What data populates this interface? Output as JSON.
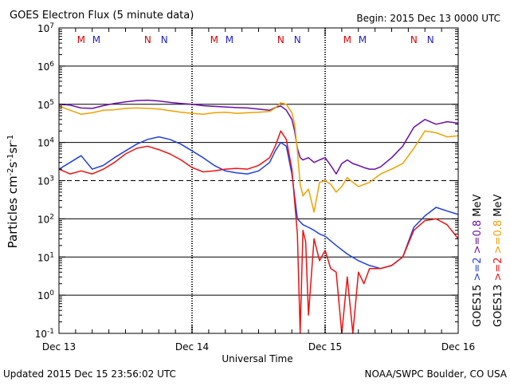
{
  "header": {
    "title": "GOES Electron Flux (5 minute data)",
    "begin": "Begin: 2015 Dec 13 0000 UTC"
  },
  "footer": {
    "updated": "Updated 2015 Dec 15 23:56:02 UTC",
    "credit": "NOAA/SWPC Boulder, CO USA"
  },
  "colors": {
    "goes15_2mev": "#1f3fe0",
    "goes13_2mev": "#ee1111",
    "goes15_08mev": "#6a0dab",
    "goes13_08mev": "#f0a000",
    "markerM": "#dd0000",
    "markerN": "#2222cc"
  },
  "chart_data": {
    "type": "line",
    "y_scale": "log",
    "ylim": [
      0.1,
      10000000
    ],
    "xlim": [
      "2015-12-13T00:00",
      "2015-12-16T00:00"
    ],
    "ylabel": "Particles cm",
    "ylabel_sup1": "-2",
    "ylabel_mid1": "s",
    "ylabel_sup2": "-1",
    "ylabel_mid2": "sr",
    "ylabel_sup3": "-1",
    "xlabel": "Universal Time",
    "x_ticks": [
      "Dec 13",
      "Dec 14",
      "Dec 15",
      "Dec 16"
    ],
    "y_ticks": [
      {
        "base": "10",
        "exp": "-1",
        "value": 0.1
      },
      {
        "base": "10",
        "exp": "0",
        "value": 1
      },
      {
        "base": "10",
        "exp": "1",
        "value": 10
      },
      {
        "base": "10",
        "exp": "2",
        "value": 100
      },
      {
        "base": "10",
        "exp": "3",
        "value": 1000
      },
      {
        "base": "10",
        "exp": "4",
        "value": 10000
      },
      {
        "base": "10",
        "exp": "5",
        "value": 100000
      },
      {
        "base": "10",
        "exp": "6",
        "value": 1000000
      },
      {
        "base": "10",
        "exp": "7",
        "value": 10000000
      }
    ],
    "threshold": 1000,
    "markers": [
      {
        "label": "M",
        "x": "2015-12-13T04:00",
        "color": "#dd0000"
      },
      {
        "label": "M",
        "x": "2015-12-13T06:45",
        "color": "#2222cc"
      },
      {
        "label": "N",
        "x": "2015-12-13T16:00",
        "color": "#dd0000"
      },
      {
        "label": "N",
        "x": "2015-12-13T19:00",
        "color": "#2222cc"
      },
      {
        "label": "M",
        "x": "2015-12-14T04:00",
        "color": "#dd0000"
      },
      {
        "label": "M",
        "x": "2015-12-14T06:45",
        "color": "#2222cc"
      },
      {
        "label": "N",
        "x": "2015-12-14T16:00",
        "color": "#dd0000"
      },
      {
        "label": "N",
        "x": "2015-12-14T19:00",
        "color": "#2222cc"
      },
      {
        "label": "M",
        "x": "2015-12-15T04:00",
        "color": "#dd0000"
      },
      {
        "label": "M",
        "x": "2015-12-15T06:45",
        "color": "#2222cc"
      },
      {
        "label": "N",
        "x": "2015-12-15T16:00",
        "color": "#dd0000"
      },
      {
        "label": "N",
        "x": "2015-12-15T19:00",
        "color": "#2222cc"
      }
    ],
    "legend": [
      {
        "text": "GOES15",
        "color": "#000000"
      },
      {
        "text": ">=2",
        "color": "#1f3fe0"
      },
      {
        "text": ">=0.8",
        "color": "#6a0dab"
      },
      {
        "text": "MeV",
        "color": "#000000"
      },
      {
        "text": "GOES13",
        "color": "#000000"
      },
      {
        "text": ">=2",
        "color": "#ee1111"
      },
      {
        "text": ">=0.8",
        "color": "#f0a000"
      },
      {
        "text": "MeV",
        "color": "#000000"
      }
    ],
    "series": [
      {
        "color": "#6a0dab",
        "x": [
          "2015-12-13T00:00",
          "2015-12-13T02:00",
          "2015-12-13T04:00",
          "2015-12-13T06:00",
          "2015-12-13T08:00",
          "2015-12-13T10:00",
          "2015-12-13T12:00",
          "2015-12-13T14:00",
          "2015-12-13T16:00",
          "2015-12-13T18:00",
          "2015-12-13T20:00",
          "2015-12-13T22:00",
          "2015-12-14T00:00",
          "2015-12-14T02:00",
          "2015-12-14T04:00",
          "2015-12-14T06:00",
          "2015-12-14T08:00",
          "2015-12-14T10:00",
          "2015-12-14T12:00",
          "2015-12-14T14:00",
          "2015-12-14T15:00",
          "2015-12-14T16:00",
          "2015-12-14T17:00",
          "2015-12-14T18:00",
          "2015-12-14T18:30",
          "2015-12-14T19:00",
          "2015-12-14T19:30",
          "2015-12-14T20:00",
          "2015-12-14T21:00",
          "2015-12-14T22:00",
          "2015-12-14T23:00",
          "2015-12-15T00:00",
          "2015-12-15T01:00",
          "2015-12-15T02:00",
          "2015-12-15T03:00",
          "2015-12-15T04:00",
          "2015-12-15T05:00",
          "2015-12-15T06:00",
          "2015-12-15T07:00",
          "2015-12-15T08:00",
          "2015-12-15T09:00",
          "2015-12-15T10:00",
          "2015-12-15T12:00",
          "2015-12-15T14:00",
          "2015-12-15T16:00",
          "2015-12-15T18:00",
          "2015-12-15T20:00",
          "2015-12-15T22:00",
          "2015-12-16T00:00"
        ],
        "y": [
          100000,
          95000,
          80000,
          78000,
          92000,
          105000,
          115000,
          125000,
          128000,
          122000,
          112000,
          105000,
          100000,
          92000,
          88000,
          85000,
          82000,
          80000,
          75000,
          70000,
          82000,
          90000,
          70000,
          40000,
          20000,
          7000,
          4000,
          3500,
          4000,
          3000,
          3500,
          4000,
          2500,
          1500,
          2800,
          3500,
          2800,
          2500,
          2200,
          2000,
          2000,
          2300,
          4000,
          8000,
          25000,
          40000,
          30000,
          35000,
          32000
        ]
      },
      {
        "color": "#f0a000",
        "x": [
          "2015-12-13T00:00",
          "2015-12-13T02:00",
          "2015-12-13T04:00",
          "2015-12-13T06:00",
          "2015-12-13T08:00",
          "2015-12-13T10:00",
          "2015-12-13T12:00",
          "2015-12-13T14:00",
          "2015-12-13T16:00",
          "2015-12-13T18:00",
          "2015-12-13T20:00",
          "2015-12-13T22:00",
          "2015-12-14T00:00",
          "2015-12-14T02:00",
          "2015-12-14T04:00",
          "2015-12-14T06:00",
          "2015-12-14T08:00",
          "2015-12-14T10:00",
          "2015-12-14T12:00",
          "2015-12-14T14:00",
          "2015-12-14T15:00",
          "2015-12-14T16:00",
          "2015-12-14T17:00",
          "2015-12-14T18:00",
          "2015-12-14T18:30",
          "2015-12-14T19:00",
          "2015-12-14T19:30",
          "2015-12-14T20:00",
          "2015-12-14T21:00",
          "2015-12-14T21:30",
          "2015-12-14T22:00",
          "2015-12-14T23:00",
          "2015-12-15T00:00",
          "2015-12-15T01:00",
          "2015-12-15T02:00",
          "2015-12-15T03:00",
          "2015-12-15T04:00",
          "2015-12-15T05:00",
          "2015-12-15T06:00",
          "2015-12-15T08:00",
          "2015-12-15T10:00",
          "2015-12-15T12:00",
          "2015-12-15T14:00",
          "2015-12-15T16:00",
          "2015-12-15T18:00",
          "2015-12-15T20:00",
          "2015-12-15T22:00",
          "2015-12-16T00:00"
        ],
        "y": [
          90000,
          70000,
          55000,
          60000,
          70000,
          72000,
          78000,
          80000,
          78000,
          75000,
          68000,
          62000,
          58000,
          55000,
          60000,
          62000,
          58000,
          60000,
          62000,
          65000,
          80000,
          110000,
          100000,
          60000,
          30000,
          6000,
          800,
          400,
          600,
          300,
          150,
          900,
          1000,
          800,
          500,
          700,
          1200,
          900,
          700,
          900,
          1500,
          2000,
          2800,
          7000,
          20000,
          18000,
          14000,
          15000
        ]
      },
      {
        "color": "#1f3fe0",
        "x": [
          "2015-12-13T00:00",
          "2015-12-13T02:00",
          "2015-12-13T04:00",
          "2015-12-13T06:00",
          "2015-12-13T08:00",
          "2015-12-13T10:00",
          "2015-12-13T12:00",
          "2015-12-13T14:00",
          "2015-12-13T16:00",
          "2015-12-13T18:00",
          "2015-12-13T20:00",
          "2015-12-13T22:00",
          "2015-12-14T00:00",
          "2015-12-14T02:00",
          "2015-12-14T04:00",
          "2015-12-14T06:00",
          "2015-12-14T08:00",
          "2015-12-14T10:00",
          "2015-12-14T12:00",
          "2015-12-14T14:00",
          "2015-12-14T15:00",
          "2015-12-14T16:00",
          "2015-12-14T17:00",
          "2015-12-14T18:00",
          "2015-12-14T19:00",
          "2015-12-14T20:00",
          "2015-12-14T21:00",
          "2015-12-14T22:00",
          "2015-12-14T23:00",
          "2015-12-15T00:00",
          "2015-12-15T02:00",
          "2015-12-15T04:00",
          "2015-12-15T06:00",
          "2015-12-15T08:00",
          "2015-12-15T10:00",
          "2015-12-15T12:00",
          "2015-12-15T14:00",
          "2015-12-15T16:00",
          "2015-12-15T18:00",
          "2015-12-15T20:00",
          "2015-12-15T22:00",
          "2015-12-16T00:00"
        ],
        "y": [
          2000,
          3000,
          4500,
          2000,
          2500,
          4000,
          6000,
          9000,
          12000,
          14000,
          12000,
          9000,
          6000,
          4000,
          2500,
          1800,
          1600,
          1500,
          1800,
          3000,
          6000,
          10000,
          8000,
          1500,
          100,
          70,
          60,
          50,
          40,
          35,
          20,
          12,
          8,
          6,
          5,
          6,
          10,
          60,
          120,
          200,
          160,
          130
        ]
      },
      {
        "color": "#ee1111",
        "x": [
          "2015-12-13T00:00",
          "2015-12-13T02:00",
          "2015-12-13T04:00",
          "2015-12-13T06:00",
          "2015-12-13T08:00",
          "2015-12-13T10:00",
          "2015-12-13T12:00",
          "2015-12-13T14:00",
          "2015-12-13T16:00",
          "2015-12-13T18:00",
          "2015-12-13T20:00",
          "2015-12-13T22:00",
          "2015-12-14T00:00",
          "2015-12-14T02:00",
          "2015-12-14T04:00",
          "2015-12-14T06:00",
          "2015-12-14T08:00",
          "2015-12-14T10:00",
          "2015-12-14T12:00",
          "2015-12-14T14:00",
          "2015-12-14T15:00",
          "2015-12-14T16:00",
          "2015-12-14T17:00",
          "2015-12-14T18:00",
          "2015-12-14T19:00",
          "2015-12-14T19:30",
          "2015-12-14T20:00",
          "2015-12-14T20:30",
          "2015-12-14T21:00",
          "2015-12-14T22:00",
          "2015-12-14T23:00",
          "2015-12-15T00:00",
          "2015-12-15T01:00",
          "2015-12-15T02:00",
          "2015-12-15T03:00",
          "2015-12-15T04:00",
          "2015-12-15T05:00",
          "2015-12-15T06:00",
          "2015-12-15T07:00",
          "2015-12-15T08:00",
          "2015-12-15T10:00",
          "2015-12-15T12:00",
          "2015-12-15T14:00",
          "2015-12-15T16:00",
          "2015-12-15T18:00",
          "2015-12-15T20:00",
          "2015-12-15T22:00",
          "2015-12-16T00:00"
        ],
        "y": [
          2000,
          1500,
          1800,
          1500,
          2000,
          3000,
          5000,
          7000,
          8000,
          6500,
          5000,
          3500,
          2200,
          1700,
          1800,
          2000,
          2100,
          2000,
          2500,
          4000,
          8000,
          20000,
          12000,
          2000,
          40,
          0.1,
          50,
          25,
          0.3,
          30,
          8,
          15,
          5,
          4,
          0.1,
          3,
          0.1,
          4,
          2,
          5,
          5,
          6,
          10,
          50,
          90,
          100,
          70,
          30
        ]
      }
    ]
  }
}
